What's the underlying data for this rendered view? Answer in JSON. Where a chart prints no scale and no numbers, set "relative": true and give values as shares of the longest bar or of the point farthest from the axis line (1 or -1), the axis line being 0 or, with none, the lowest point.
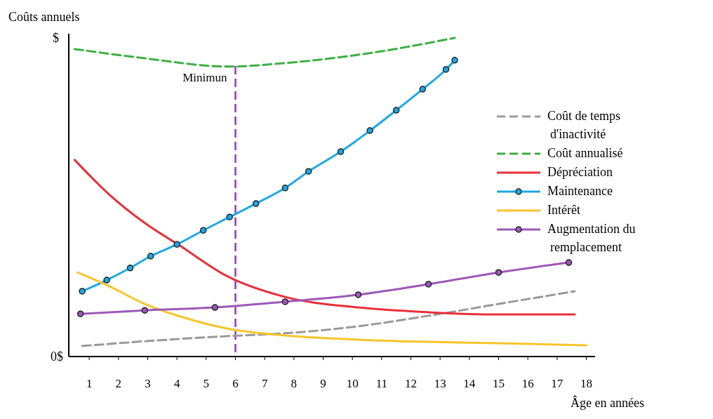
{
  "chart_data": {
    "type": "line",
    "relative": true,
    "xlabel": "Âge en années",
    "ylabel": "Coûts annuels",
    "xlim": [
      0.3,
      18.3
    ],
    "xticks": [
      1,
      2,
      3,
      4,
      5,
      6,
      7,
      8,
      9,
      10,
      11,
      12,
      13,
      14,
      15,
      16,
      17,
      18
    ],
    "legend": "right",
    "annotations": [
      "0$",
      "$"
    ],
    "ref_lines": [
      {
        "axis": "x",
        "value": 6,
        "label": "Minimun",
        "color": "#9b30d0",
        "line_style": "dashed"
      }
    ],
    "series": [
      {
        "name": "Coût de temps d'inactivité",
        "color": "#999999",
        "line_style": "dashed",
        "x": [
          0.76,
          2.9,
          5.7,
          7.7,
          10.2,
          12.6,
          15,
          17.6
        ],
        "values": [
          0.033,
          0.048,
          0.064,
          0.073,
          0.095,
          0.128,
          0.165,
          0.205
        ]
      },
      {
        "name": "Coût annualisé",
        "color": "#3cb043",
        "line_style": "dashed",
        "x": [
          0.5,
          2.9,
          5.75,
          7.7,
          10.2,
          13.5
        ],
        "values": [
          0.965,
          0.936,
          0.91,
          0.921,
          0.947,
          1
        ]
      },
      {
        "name": "Dépréciation",
        "color": "#e8303a",
        "x": [
          0.5,
          1.7,
          2.9,
          4.1,
          5.7,
          7.7,
          10.2,
          12.6,
          15,
          17.6
        ],
        "values": [
          0.617,
          0.507,
          0.419,
          0.348,
          0.253,
          0.187,
          0.154,
          0.139,
          0.132,
          0.132
        ]
      },
      {
        "name": "Maintenance",
        "color": "#1ca9e6",
        "marker": "circle",
        "x": [
          0.76,
          1.6,
          2.4,
          3.1,
          4,
          4.9,
          5.8,
          6.7,
          7.7,
          8.5,
          9.6,
          10.6,
          11.5,
          12.4,
          13.2,
          13.5
        ],
        "values": [
          0.205,
          0.24,
          0.278,
          0.315,
          0.352,
          0.396,
          0.438,
          0.48,
          0.529,
          0.581,
          0.643,
          0.709,
          0.773,
          0.839,
          0.901,
          0.93
        ]
      },
      {
        "name": "Intérêt",
        "color": "#f7c52a",
        "x": [
          0.6,
          1.7,
          2.9,
          4.1,
          5.7,
          7.7,
          10.2,
          12.6,
          15,
          18
        ],
        "values": [
          0.264,
          0.22,
          0.165,
          0.126,
          0.088,
          0.066,
          0.053,
          0.046,
          0.042,
          0.035
        ]
      },
      {
        "name": "Augmentation du remplacement",
        "color": "#9b59b6",
        "marker": "circle",
        "x": [
          0.7,
          2.9,
          5.3,
          7.7,
          10.2,
          12.6,
          15,
          17.4
        ],
        "values": [
          0.134,
          0.145,
          0.154,
          0.172,
          0.194,
          0.227,
          0.264,
          0.295
        ]
      }
    ]
  }
}
